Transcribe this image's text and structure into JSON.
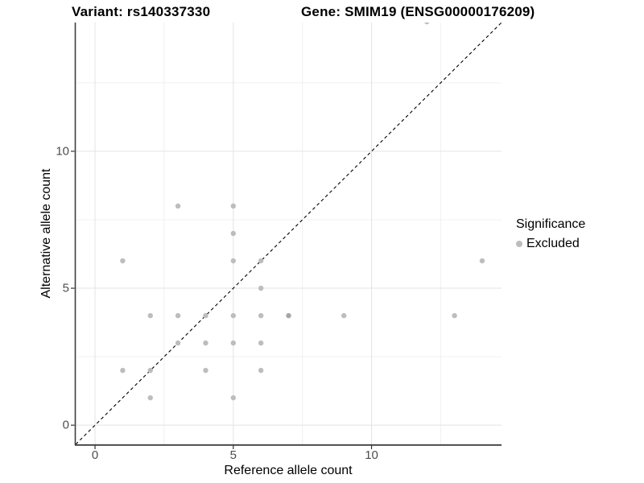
{
  "titles": {
    "variant": "Variant: rs140337330",
    "gene": "Gene: SMIM19 (ENSG00000176209)"
  },
  "legend": {
    "title": "Significance",
    "position": "right",
    "items": [
      {
        "label": "Excluded",
        "color": "#bdbdbd"
      }
    ]
  },
  "colors": {
    "background": "#ffffff",
    "point": "#bdbdbd",
    "point_overlap": "#a6a6a6",
    "grid_major": "#e3e3e3",
    "grid_minor": "#f0f0f0",
    "axis_line": "#3f3f3f",
    "tick_label": "#4d4d4d",
    "identity_line": "#000000"
  },
  "chart_data": {
    "type": "scatter",
    "title_left": "Variant: rs140337330",
    "title_right": "Gene: SMIM19 (ENSG00000176209)",
    "xlabel": "Reference allele count",
    "ylabel": "Alternative allele count",
    "xlim": [
      -0.7,
      14.7
    ],
    "ylim": [
      -0.7,
      14.7
    ],
    "x_ticks": [
      0,
      5,
      10
    ],
    "y_ticks": [
      0,
      5,
      10
    ],
    "x_minor_gridlines": [
      2.5,
      7.5,
      12.5
    ],
    "y_minor_gridlines": [
      2.5,
      7.5,
      12.5
    ],
    "grid": true,
    "identity_line": {
      "style": "dashed",
      "slope": 1,
      "intercept": 0
    },
    "legend_title": "Significance",
    "series": [
      {
        "name": "Excluded",
        "color": "#bdbdbd",
        "points": [
          {
            "x": 1,
            "y": 2
          },
          {
            "x": 1,
            "y": 6
          },
          {
            "x": 2,
            "y": 1
          },
          {
            "x": 2,
            "y": 2
          },
          {
            "x": 2,
            "y": 4
          },
          {
            "x": 3,
            "y": 3
          },
          {
            "x": 3,
            "y": 4
          },
          {
            "x": 3,
            "y": 8
          },
          {
            "x": 4,
            "y": 2
          },
          {
            "x": 4,
            "y": 3
          },
          {
            "x": 4,
            "y": 4
          },
          {
            "x": 5,
            "y": 1
          },
          {
            "x": 5,
            "y": 3
          },
          {
            "x": 5,
            "y": 4
          },
          {
            "x": 5,
            "y": 6
          },
          {
            "x": 5,
            "y": 7
          },
          {
            "x": 5,
            "y": 8
          },
          {
            "x": 6,
            "y": 2
          },
          {
            "x": 6,
            "y": 3
          },
          {
            "x": 6,
            "y": 4
          },
          {
            "x": 6,
            "y": 5
          },
          {
            "x": 6,
            "y": 6
          },
          {
            "x": 7,
            "y": 4,
            "overlap": true
          },
          {
            "x": 9,
            "y": 4
          },
          {
            "x": 12,
            "y": 15,
            "clipped_top": true
          },
          {
            "x": 13,
            "y": 4
          },
          {
            "x": 14,
            "y": 6
          }
        ]
      }
    ]
  }
}
